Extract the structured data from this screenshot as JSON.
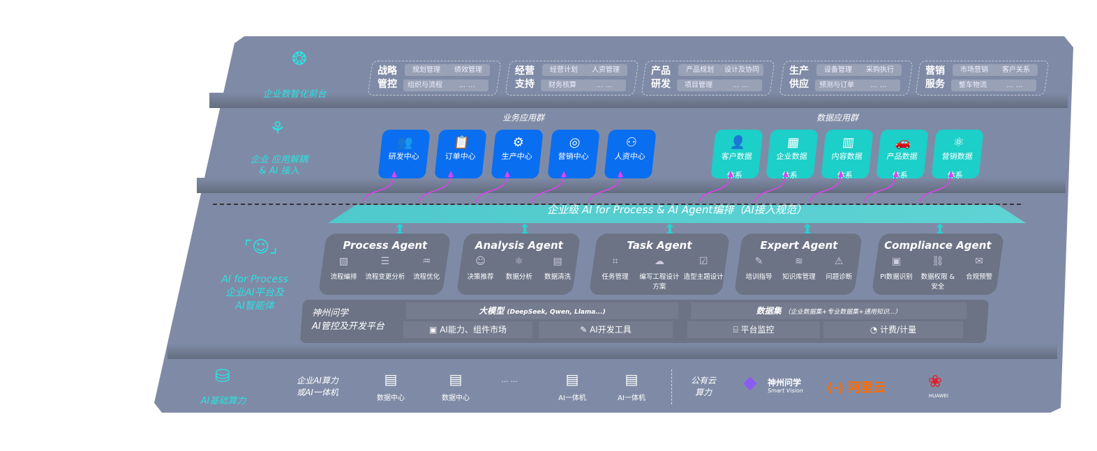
{
  "layers": {
    "front": {
      "label": "企业数智化前台",
      "icon": "brain-icon",
      "groups": [
        {
          "title": [
            "战略",
            "管控"
          ],
          "items": [
            "规划管理",
            "绩效管理",
            "组织与流程",
            "… …"
          ]
        },
        {
          "title": [
            "经营",
            "支持"
          ],
          "items": [
            "经营计划",
            "人资管理",
            "财务核算",
            "… …"
          ]
        },
        {
          "title": [
            "产品",
            "研发"
          ],
          "items": [
            "产品规划",
            "设计及协同",
            "项目管理",
            "… …"
          ]
        },
        {
          "title": [
            "生产",
            "供应"
          ],
          "items": [
            "设备管理",
            "采购执行",
            "预测与订单",
            "… …"
          ]
        },
        {
          "title": [
            "营销",
            "服务"
          ],
          "items": [
            "市场营销",
            "客户关系",
            "整车物流",
            "… …"
          ]
        }
      ]
    },
    "apps": {
      "label": [
        "企业 应用解耦",
        "& AI 接入"
      ],
      "icon": "network-icon",
      "business_title": "业务应用群",
      "data_title": "数据应用群",
      "business": [
        [
          "研发中心"
        ],
        [
          "订单中心"
        ],
        [
          "生产中心"
        ],
        [
          "营销中心"
        ],
        [
          "人资中心"
        ]
      ],
      "data": [
        [
          "客户数据",
          "体系"
        ],
        [
          "企业数据",
          "体系"
        ],
        [
          "内容数据",
          "体系"
        ],
        [
          "产品数据",
          "体系"
        ],
        [
          "营销数据",
          "体系"
        ]
      ],
      "business_color": "#0a6ef0",
      "data_color": "#1ccfc8"
    },
    "orchestration": "企业级 AI for Process & AI Agent编排（AI接入规范）",
    "ai": {
      "label": [
        "AI for Process",
        "企业AI平台及",
        "AI智能体"
      ],
      "icon": "face-scan-icon",
      "agents": [
        {
          "name": "Process Agent",
          "items": [
            "流程编排",
            "流程变更分析",
            "流程优化"
          ]
        },
        {
          "name": "Analysis Agent",
          "items": [
            "决策推荐",
            "数据分析",
            "数据清洗"
          ]
        },
        {
          "name": "Task Agent",
          "items": [
            "任务管理",
            "编写工程设计方案",
            "造型主题设计"
          ]
        },
        {
          "name": "Expert Agent",
          "items": [
            "培训指导",
            "知识库管理",
            "问题诊断"
          ]
        },
        {
          "name": "Compliance Agent",
          "items": [
            "PI数据识别",
            "数据权限 & 安全",
            "合规预警"
          ]
        }
      ],
      "platform": {
        "title": [
          "神州问学",
          "AI管控及开发平台"
        ],
        "model": "大模型",
        "model_note": "(DeepSeek, Qwen, Llama...)",
        "dataset": "数据集",
        "dataset_note": "（企业数据集+专业数据集+通用知识...）",
        "tools": [
          "AI能力、组件市场",
          "AI开发工具",
          "平台监控",
          "计费/计量"
        ]
      }
    },
    "infra": {
      "label": "AI基础算力",
      "icon": "database-icon",
      "enterprise": [
        "企业AI算力",
        "或AI一体机"
      ],
      "nodes": [
        "数据中心",
        "数据中心",
        "… …",
        "AI一体机",
        "AI一体机"
      ],
      "public": [
        "公有云",
        "算力"
      ],
      "vendors": {
        "smartvision": "神州问学",
        "smartvision_sub": "Smart Vision",
        "aliyun": "阿里云",
        "huawei": "HUAWEI"
      }
    }
  }
}
